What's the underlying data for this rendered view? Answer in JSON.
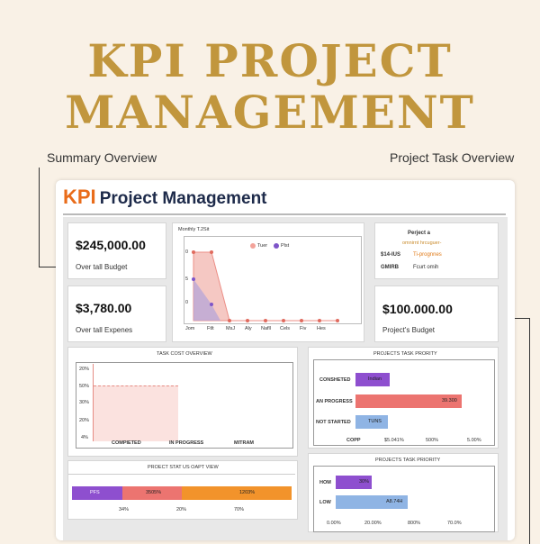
{
  "hero": {
    "line1": "KPI PROJECT",
    "line2": "MANAGEMENT"
  },
  "captions": {
    "summary": "Summary Overview",
    "task": "Project Task Overview"
  },
  "dashboard": {
    "title_kpi": "KPI",
    "title_rest": "Project Management",
    "budget": {
      "value": "$245,000.00",
      "label": "Over tall Budget"
    },
    "expenses": {
      "value": "$3,780.00",
      "label": "Over tall Expenes"
    },
    "project_budget": {
      "value": "$100.000.00",
      "label": "Project's Budget"
    },
    "monthly": {
      "title": "Monthly T.2Sit",
      "legend": [
        "Tuer",
        "Plst"
      ],
      "ylabels": [
        "0",
        "5",
        "0"
      ],
      "xlabels": [
        "Jom",
        "Ftlt",
        "MsJ",
        "Aly",
        "Nafll",
        "Cels",
        "Fiv",
        "Hes"
      ]
    },
    "project_card": {
      "title": "Perject a",
      "sub": "omnirnt hrcuguer-",
      "rows": [
        {
          "k": "$14-IUS",
          "v": "Ti-prognnes"
        },
        {
          "k": "GMIRB",
          "v": "Fcurt omih"
        }
      ]
    },
    "task_cost": {
      "title": "TASK COST OVERVIEW",
      "ylabels": [
        "20%",
        "50%",
        "30%",
        "20%",
        "4%"
      ],
      "xlabels": [
        "COMPIETED",
        "IN PROGRESS",
        "MITRAM"
      ]
    },
    "priority1": {
      "title": "PROJECTS TASK PRORITY",
      "rows": [
        {
          "label": "CONSHETED",
          "bar": "Indian",
          "color": "#8e4fcf"
        },
        {
          "label": "AN PROGRESS",
          "bar": "39.300",
          "color": "#ec7470"
        },
        {
          "label": "NOT STARTED",
          "bar": "TUNS",
          "color": "#8fb4e4"
        }
      ],
      "xlabels": [
        "COPP",
        "$5.041%",
        "500%",
        "5.00%"
      ]
    },
    "status": {
      "title": "PROECT STAT US OAPT VIEW",
      "segments": [
        {
          "label": "PFS",
          "color": "#8e4fcf"
        },
        {
          "label": "3505%",
          "color": "#ec7470"
        },
        {
          "label": "1203%",
          "color": "#f2932b"
        }
      ],
      "xlabels": [
        "34%",
        "20%",
        "70%"
      ]
    },
    "priority2": {
      "title": "PROJECTS TASK PRIORITY",
      "rows": [
        {
          "label": "HOM",
          "bar": "30%",
          "color": "#8e4fcf"
        },
        {
          "label": "LOW",
          "bar": "A8.74H",
          "color": "#8fb4e4"
        }
      ],
      "xlabels": [
        "0.00%",
        "20.00%",
        "800%",
        "70.0%"
      ]
    }
  }
}
